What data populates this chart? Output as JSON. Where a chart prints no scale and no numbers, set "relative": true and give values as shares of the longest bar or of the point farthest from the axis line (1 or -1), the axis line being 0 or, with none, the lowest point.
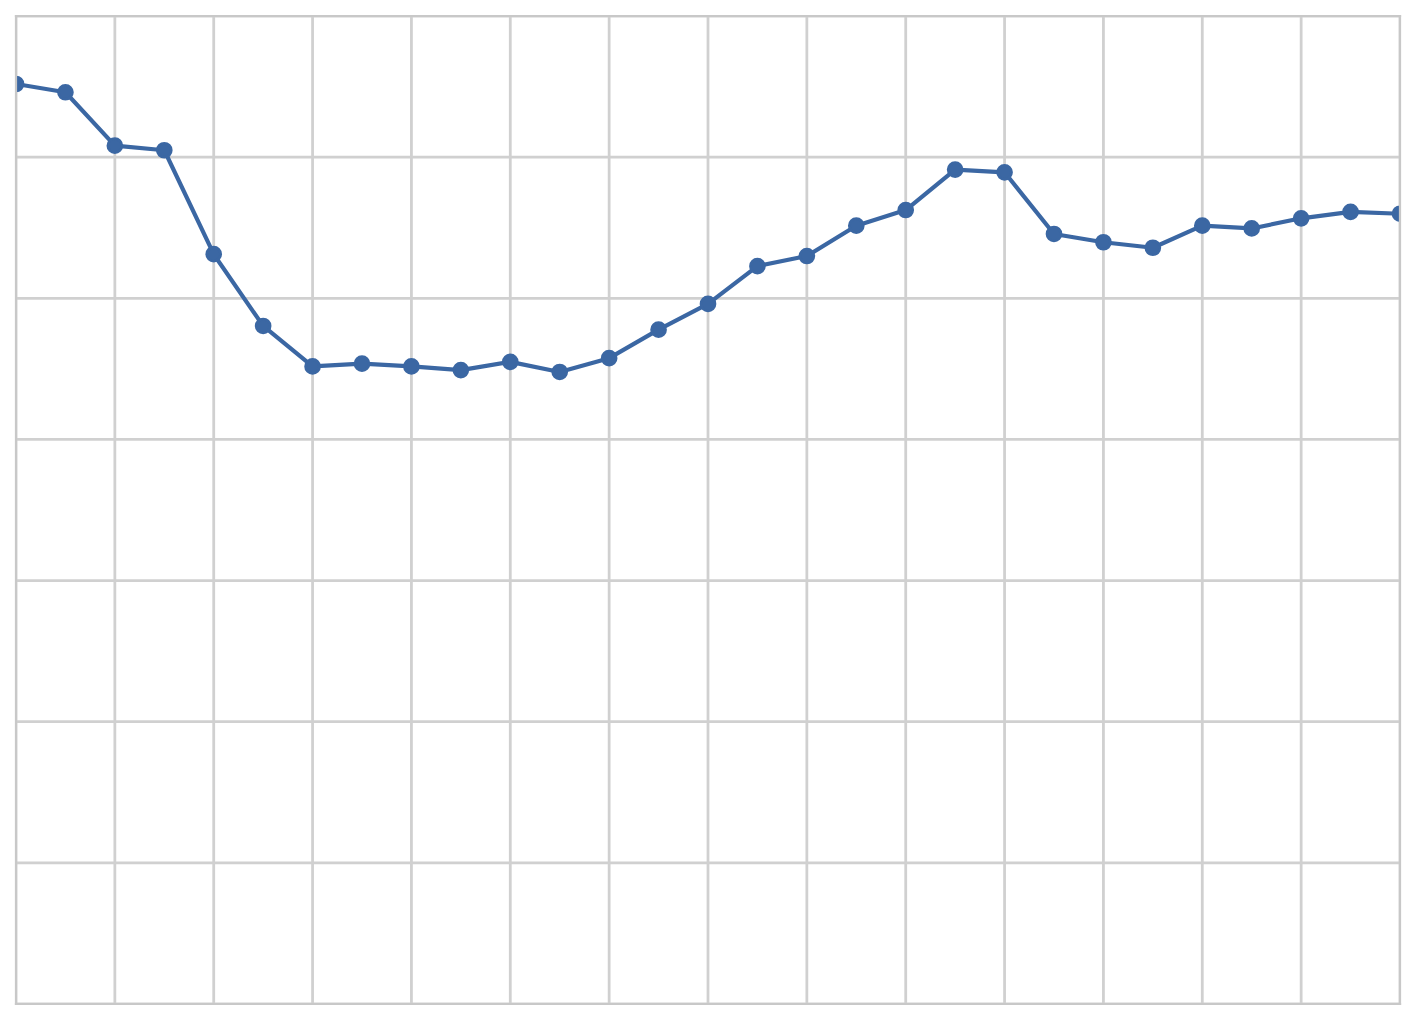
{
  "chart_data": {
    "type": "line",
    "relative": true,
    "categories": [
      null,
      null,
      null,
      null,
      null,
      null,
      null,
      null,
      null,
      null,
      null,
      null,
      null,
      null,
      null,
      null,
      null,
      null,
      null,
      null,
      null,
      null,
      null,
      null,
      null,
      null,
      null,
      null,
      null
    ],
    "series": [
      {
        "color": "#3b67a3",
        "values": [
          1.0,
          0.991,
          0.933,
          0.928,
          0.815,
          0.737,
          0.693,
          0.696,
          0.693,
          0.689,
          0.698,
          0.687,
          0.702,
          0.733,
          0.761,
          0.802,
          0.813,
          0.846,
          0.863,
          0.907,
          0.904,
          0.837,
          0.828,
          0.822,
          0.846,
          0.843,
          0.854,
          0.861,
          0.859
        ]
      }
    ],
    "grid": true,
    "marker": "circle",
    "line_style": "solid",
    "tick_labels": false,
    "legend": false
  }
}
